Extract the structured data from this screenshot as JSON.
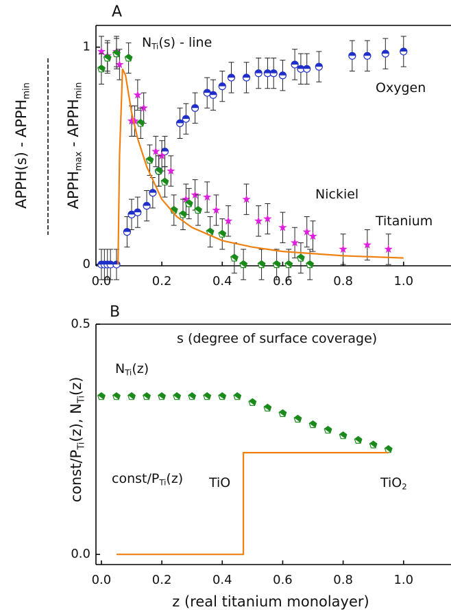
{
  "chart_data": [
    {
      "type": "scatter",
      "panel": "A",
      "xlim": [
        -0.018,
        1.157
      ],
      "ylim": [
        -0.006,
        1.1
      ],
      "xticks": [
        {
          "value": 0,
          "label": "0.0"
        },
        0.2,
        0.4,
        0.6,
        0.8,
        {
          "value": 1,
          "label": "1.0"
        }
      ],
      "yticks": [
        0,
        1
      ],
      "ylabel_top": [
        "APPH(s) - APPH",
        "min"
      ],
      "ylabel_bottom": [
        "APPH",
        "max",
        " - APPH",
        "min"
      ],
      "annotations": [
        {
          "parts": [
            "N",
            "Ti",
            "(s) - line"
          ]
        },
        {
          "parts": [
            "Oxygen"
          ]
        },
        {
          "parts": [
            "Nickiel"
          ]
        },
        {
          "parts": [
            "Titanium"
          ]
        }
      ],
      "series": [
        {
          "name": "Oxygen",
          "color": "#1f2fc8",
          "marker": "halfcircle",
          "error": 0.07,
          "x": [
            0.0,
            0.01,
            0.02,
            0.03,
            0.05,
            0.085,
            0.1,
            0.12,
            0.15,
            0.17,
            0.19,
            0.21,
            0.26,
            0.28,
            0.31,
            0.35,
            0.37,
            0.4,
            0.43,
            0.48,
            0.52,
            0.55,
            0.57,
            0.6,
            0.64,
            0.66,
            0.68,
            0.72,
            0.83,
            0.88,
            0.94,
            1.0
          ],
          "values": [
            0,
            0,
            0,
            0,
            0,
            0.15,
            0.23,
            0.24,
            0.27,
            0.33,
            0.43,
            0.52,
            0.65,
            0.67,
            0.72,
            0.79,
            0.78,
            0.82,
            0.86,
            0.86,
            0.88,
            0.88,
            0.88,
            0.87,
            0.92,
            0.9,
            0.9,
            0.91,
            0.96,
            0.96,
            0.97,
            0.98
          ]
        },
        {
          "name": "Nickiel",
          "color": "#e020e0",
          "marker": "star",
          "error": 0.07,
          "x": [
            0.0,
            0.02,
            0.05,
            0.06,
            0.1,
            0.11,
            0.12,
            0.14,
            0.18,
            0.2,
            0.23,
            0.28,
            0.31,
            0.35,
            0.38,
            0.42,
            0.48,
            0.52,
            0.55,
            0.6,
            0.64,
            0.68,
            0.7,
            0.8,
            0.88,
            0.95
          ],
          "values": [
            0.98,
            0.96,
            0.98,
            0.92,
            0.66,
            0.66,
            0.78,
            0.72,
            0.52,
            0.5,
            0.43,
            0.3,
            0.32,
            0.31,
            0.25,
            0.2,
            0.3,
            0.2,
            0.21,
            0.17,
            0.1,
            0.15,
            0.13,
            0.07,
            0.09,
            0.07
          ]
        },
        {
          "name": "Titanium",
          "color": "#1a8a1a",
          "marker": "pentagon",
          "error": 0.07,
          "x": [
            0.0,
            0.02,
            0.05,
            0.09,
            0.13,
            0.16,
            0.19,
            0.21,
            0.24,
            0.27,
            0.29,
            0.32,
            0.36,
            0.4,
            0.44,
            0.47,
            0.53,
            0.58,
            0.62,
            0.66,
            0.69
          ],
          "values": [
            0.9,
            0.95,
            0.97,
            0.95,
            0.65,
            0.48,
            0.43,
            0.38,
            0.25,
            0.23,
            0.28,
            0.25,
            0.15,
            0.14,
            0.03,
            0.0,
            0.0,
            0.0,
            0.0,
            0.03,
            0.0
          ]
        },
        {
          "name": "N_Ti(s) line",
          "color": "#f08010",
          "marker": "line",
          "x": [
            0.055,
            0.06,
            0.07,
            0.08,
            0.1,
            0.12,
            0.15,
            0.2,
            0.25,
            0.3,
            0.4,
            0.5,
            0.6,
            0.8,
            1.0
          ],
          "values": [
            0,
            0.5,
            0.9,
            0.87,
            0.7,
            0.58,
            0.45,
            0.3,
            0.22,
            0.17,
            0.11,
            0.08,
            0.06,
            0.04,
            0.03
          ]
        }
      ]
    },
    {
      "type": "scatter",
      "panel": "B",
      "xlim": [
        -0.018,
        1.157
      ],
      "ylim": [
        -0.022,
        0.5
      ],
      "xticks": [
        {
          "value": 0,
          "label": "0.0"
        },
        0.2,
        0.4,
        0.6,
        0.8,
        {
          "value": 1,
          "label": "1.0"
        }
      ],
      "yticks": [
        {
          "value": 0,
          "label": "0.0"
        },
        {
          "value": 0.5,
          "label": "0.5"
        }
      ],
      "xlabel": "z (real titanium monolayer)",
      "ylabel": [
        "const/P",
        "Ti",
        "(z), N",
        "Ti",
        "(z)"
      ],
      "annotations": [
        {
          "parts": [
            "s (degree of surface coverage)"
          ]
        },
        {
          "parts": [
            "N",
            "Ti",
            "(z)"
          ]
        },
        {
          "parts": [
            "const/P",
            "Ti",
            "(z)"
          ]
        },
        {
          "parts": [
            "TiO"
          ]
        },
        {
          "parts": [
            "TiO",
            "2"
          ]
        }
      ],
      "series": [
        {
          "name": "N_Ti(z)",
          "color": "#1a8a1a",
          "marker": "pentagon",
          "x": [
            0.0,
            0.05,
            0.1,
            0.15,
            0.2,
            0.25,
            0.3,
            0.35,
            0.4,
            0.45,
            0.5,
            0.55,
            0.6,
            0.65,
            0.7,
            0.75,
            0.8,
            0.85,
            0.9,
            0.95
          ],
          "values": [
            0.343,
            0.343,
            0.343,
            0.343,
            0.343,
            0.343,
            0.343,
            0.343,
            0.343,
            0.343,
            0.33,
            0.318,
            0.306,
            0.294,
            0.282,
            0.27,
            0.258,
            0.248,
            0.238,
            0.228
          ]
        },
        {
          "name": "const/P_Ti(z)",
          "color": "#f08010",
          "marker": "line",
          "x": [
            0.05,
            0.47,
            0.47,
            0.95
          ],
          "values": [
            0,
            0,
            0.221,
            0.221
          ]
        }
      ]
    }
  ]
}
